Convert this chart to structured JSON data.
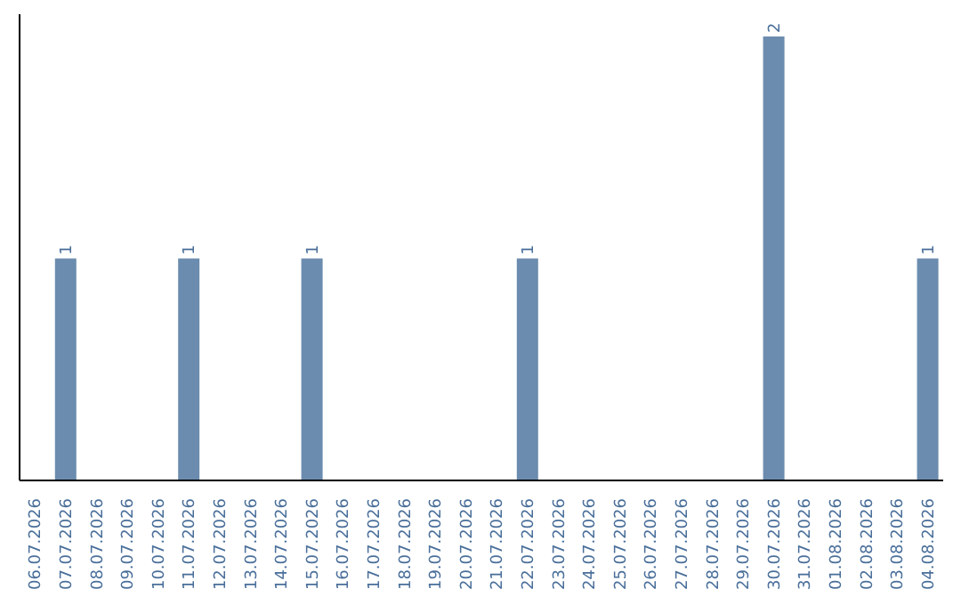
{
  "chart_data": {
    "type": "bar",
    "categories": [
      "06.07.2026",
      "07.07.2026",
      "08.07.2026",
      "09.07.2026",
      "10.07.2026",
      "11.07.2026",
      "12.07.2026",
      "13.07.2026",
      "14.07.2026",
      "15.07.2026",
      "16.07.2026",
      "17.07.2026",
      "18.07.2026",
      "19.07.2026",
      "20.07.2026",
      "21.07.2026",
      "22.07.2026",
      "23.07.2026",
      "24.07.2026",
      "25.07.2026",
      "26.07.2026",
      "27.07.2026",
      "28.07.2026",
      "29.07.2026",
      "30.07.2026",
      "31.07.2026",
      "01.08.2026",
      "02.08.2026",
      "03.08.2026",
      "04.08.2026"
    ],
    "values": [
      0,
      1,
      0,
      0,
      0,
      1,
      0,
      0,
      0,
      1,
      0,
      0,
      0,
      0,
      0,
      0,
      1,
      0,
      0,
      0,
      0,
      0,
      0,
      0,
      2,
      0,
      0,
      0,
      0,
      1
    ],
    "value_labels": [
      null,
      "1",
      null,
      null,
      null,
      "1",
      null,
      null,
      null,
      "1",
      null,
      null,
      null,
      null,
      null,
      null,
      "1",
      null,
      null,
      null,
      null,
      null,
      null,
      null,
      "2",
      null,
      null,
      null,
      null,
      "1"
    ],
    "color": "#6b8cae",
    "ylim": [
      0,
      2.1
    ],
    "tick_labels": "x"
  }
}
